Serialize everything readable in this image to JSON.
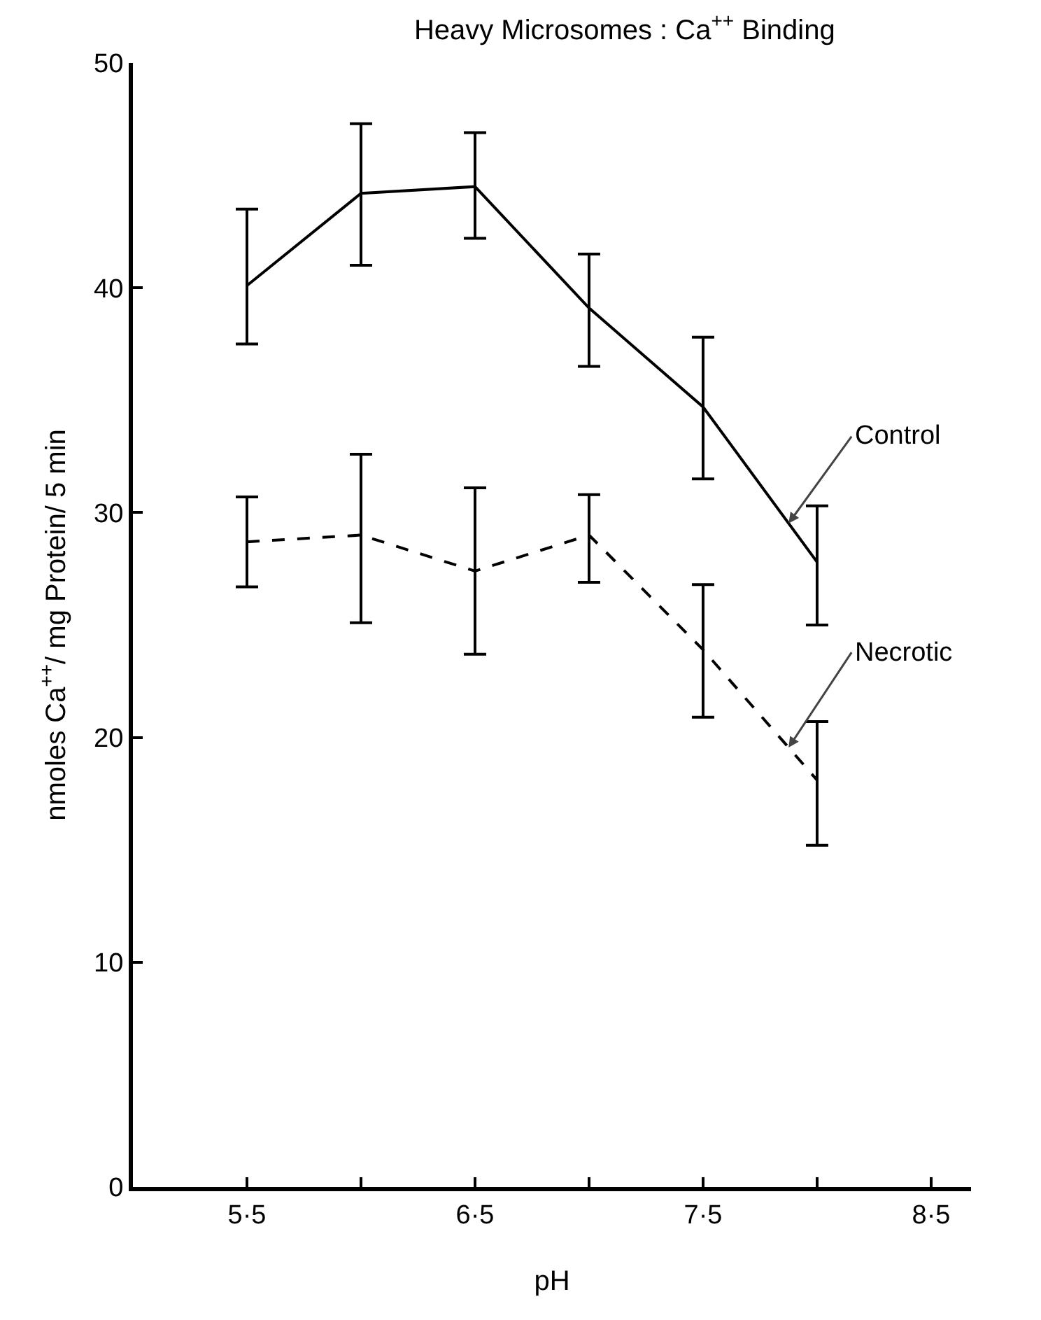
{
  "chart_data": {
    "type": "line",
    "title": "Heavy Microsomes : Ca$^{++}$ Binding",
    "xlabel": "pH",
    "ylabel": "nmoles Ca$^{++}$/ mg Protein/ 5 min",
    "categories": [
      "5·5",
      null,
      "6·5",
      null,
      "7·5",
      null,
      "8·5"
    ],
    "series": [
      {
        "name": "Control",
        "color": "#000000",
        "line_style": "solid",
        "values": [
          40.1,
          44.2,
          44.5,
          39.1,
          34.7,
          27.8,
          null
        ],
        "errors": [
          [
            37.5,
            43.5
          ],
          [
            41.0,
            47.3
          ],
          [
            42.2,
            46.9
          ],
          [
            36.5,
            41.5
          ],
          [
            31.5,
            37.8
          ],
          [
            25.0,
            30.3
          ],
          null
        ]
      },
      {
        "name": "Necrotic",
        "color": "#000000",
        "line_style": "dashed",
        "values": [
          28.7,
          29.0,
          27.4,
          29.0,
          23.9,
          18.1,
          null
        ],
        "errors": [
          [
            26.7,
            30.7
          ],
          [
            25.1,
            32.6
          ],
          [
            23.7,
            31.1
          ],
          [
            26.9,
            30.8
          ],
          [
            20.9,
            26.8
          ],
          [
            15.2,
            20.7
          ],
          null
        ]
      }
    ],
    "ylim": [
      0,
      50
    ],
    "yticks": [
      0,
      10,
      20,
      30,
      40,
      50
    ],
    "grid": false,
    "legend": false,
    "marker": "none"
  }
}
